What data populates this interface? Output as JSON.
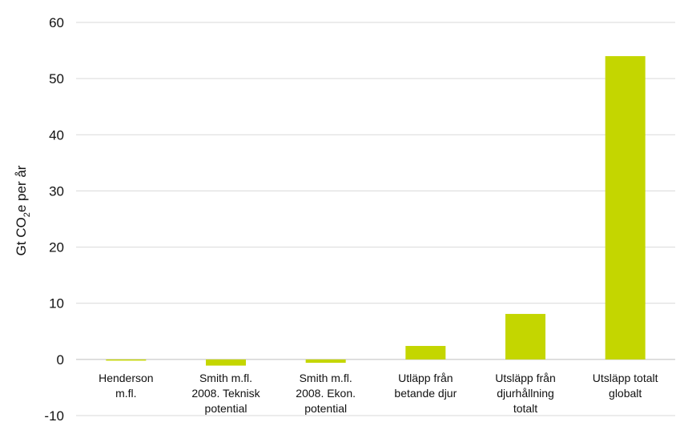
{
  "chart_data": {
    "type": "bar",
    "categories": [
      [
        "Henderson",
        "m.fl."
      ],
      [
        "Smith m.fl.",
        "2008. Teknisk",
        "potential"
      ],
      [
        "Smith m.fl.",
        "2008. Ekon.",
        "potential"
      ],
      [
        "Utläpp från",
        "betande djur"
      ],
      [
        "Utsläpp från",
        "djurhållning",
        "totalt"
      ],
      [
        "Utsläpp totalt",
        "globalt"
      ]
    ],
    "values": [
      -0.2,
      -1.1,
      -0.6,
      2.4,
      8.1,
      54.0
    ],
    "ylim": [
      -10,
      60
    ],
    "yticks": [
      "-10",
      "0",
      "10",
      "20",
      "30",
      "40",
      "50",
      "60"
    ],
    "ylabel": {
      "pre": "Gt CO",
      "sub": "2",
      "post": "e per år"
    },
    "xlabel": "",
    "title": "",
    "grid": true,
    "colors": {
      "bar": "#c4d600",
      "grid": "#d9d9d9",
      "axis": "#bfbfbf",
      "text": "#111111"
    }
  }
}
